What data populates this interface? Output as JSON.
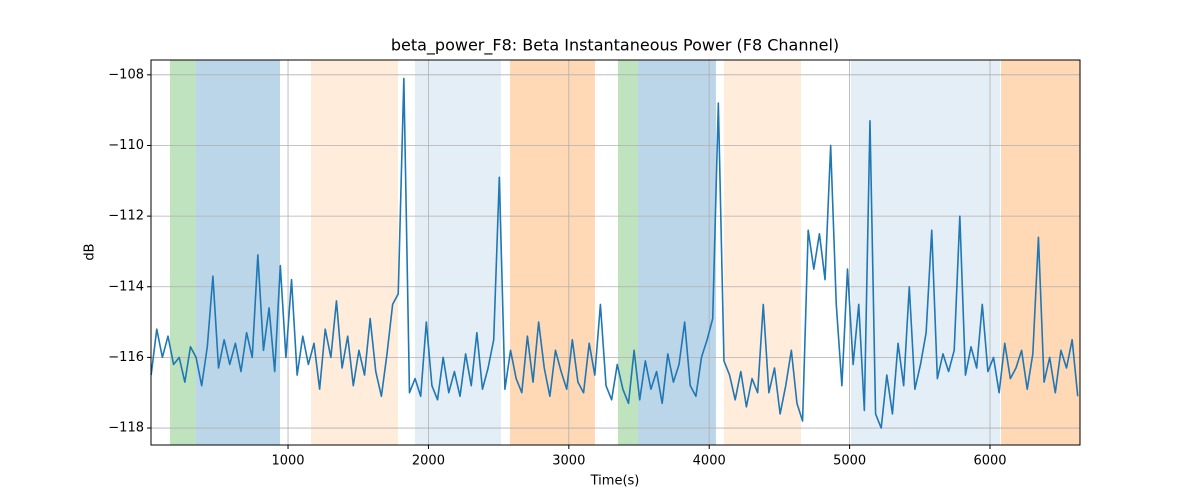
{
  "chart_data": {
    "type": "line",
    "title": "beta_power_F8: Beta Instantaneous Power (F8 Channel)",
    "x_label": "Time(s)",
    "y_label": "dB",
    "xlim": [
      24,
      6641
    ],
    "ylim": [
      -118.48,
      -107.58
    ],
    "xticks": [
      1000,
      2000,
      3000,
      4000,
      5000,
      6000
    ],
    "yticks": [
      {
        "value": -108,
        "label": "−108"
      },
      {
        "value": -110,
        "label": "−110"
      },
      {
        "value": -112,
        "label": "−112"
      },
      {
        "value": -114,
        "label": "−114"
      },
      {
        "value": -116,
        "label": "−116"
      },
      {
        "value": -118,
        "label": "−118"
      }
    ],
    "grid": true,
    "color": "#1f77b4",
    "spans": [
      {
        "x0": 159,
        "x1": 344,
        "color": "#2ca02c",
        "opacity": 0.3
      },
      {
        "x0": 344,
        "x1": 943,
        "color": "#1f77b4",
        "opacity": 0.3
      },
      {
        "x0": 1164,
        "x1": 1783,
        "color": "#ff7f0e",
        "opacity": 0.15
      },
      {
        "x0": 1904,
        "x1": 2517,
        "color": "#1f77b4",
        "opacity": 0.12
      },
      {
        "x0": 2581,
        "x1": 3186,
        "color": "#ff7f0e",
        "opacity": 0.3
      },
      {
        "x0": 3350,
        "x1": 3493,
        "color": "#2ca02c",
        "opacity": 0.3
      },
      {
        "x0": 3493,
        "x1": 4048,
        "color": "#1f77b4",
        "opacity": 0.3
      },
      {
        "x0": 4105,
        "x1": 4654,
        "color": "#ff7f0e",
        "opacity": 0.15
      },
      {
        "x0": 5010,
        "x1": 6071,
        "color": "#1f77b4",
        "opacity": 0.12
      },
      {
        "x0": 6078,
        "x1": 6641,
        "color": "#ff7f0e",
        "opacity": 0.3
      }
    ],
    "x": [
      25,
      65,
      105,
      145,
      185,
      225,
      265,
      305,
      345,
      385,
      425,
      465,
      505,
      545,
      585,
      625,
      665,
      705,
      745,
      785,
      825,
      865,
      905,
      945,
      985,
      1025,
      1065,
      1105,
      1145,
      1185,
      1225,
      1265,
      1305,
      1345,
      1385,
      1425,
      1465,
      1505,
      1545,
      1585,
      1625,
      1665,
      1705,
      1745,
      1785,
      1825,
      1865,
      1905,
      1945,
      1985,
      2025,
      2065,
      2105,
      2145,
      2185,
      2225,
      2265,
      2305,
      2345,
      2385,
      2425,
      2465,
      2505,
      2545,
      2585,
      2625,
      2665,
      2705,
      2745,
      2785,
      2825,
      2865,
      2905,
      2945,
      2985,
      3025,
      3065,
      3105,
      3145,
      3185,
      3225,
      3265,
      3305,
      3345,
      3385,
      3425,
      3465,
      3505,
      3545,
      3585,
      3625,
      3665,
      3705,
      3745,
      3785,
      3825,
      3865,
      3905,
      3945,
      3985,
      4025,
      4065,
      4105,
      4145,
      4185,
      4225,
      4265,
      4305,
      4345,
      4385,
      4425,
      4465,
      4505,
      4545,
      4585,
      4625,
      4665,
      4705,
      4745,
      4785,
      4825,
      4865,
      4905,
      4945,
      4985,
      5025,
      5065,
      5105,
      5145,
      5185,
      5225,
      5265,
      5305,
      5345,
      5385,
      5425,
      5465,
      5505,
      5545,
      5585,
      5625,
      5665,
      5705,
      5745,
      5785,
      5825,
      5865,
      5905,
      5945,
      5985,
      6025,
      6065,
      6105,
      6145,
      6185,
      6225,
      6265,
      6305,
      6345,
      6385,
      6425,
      6465,
      6505,
      6545,
      6585,
      6625
    ],
    "values": [
      -116.5,
      -115.2,
      -116.0,
      -115.4,
      -116.2,
      -116.0,
      -116.7,
      -115.7,
      -116.0,
      -116.8,
      -115.7,
      -113.7,
      -116.3,
      -115.5,
      -116.2,
      -115.6,
      -116.4,
      -115.3,
      -116.0,
      -113.1,
      -115.8,
      -114.6,
      -116.4,
      -113.4,
      -116.0,
      -113.8,
      -116.5,
      -115.4,
      -116.2,
      -115.6,
      -116.9,
      -115.2,
      -116.0,
      -114.4,
      -116.3,
      -115.4,
      -116.8,
      -115.8,
      -116.5,
      -114.9,
      -116.4,
      -117.1,
      -115.9,
      -114.5,
      -114.2,
      -108.1,
      -117.0,
      -116.6,
      -117.1,
      -115.0,
      -116.8,
      -117.2,
      -116.0,
      -117.0,
      -116.4,
      -117.1,
      -115.9,
      -116.8,
      -115.3,
      -116.9,
      -116.3,
      -115.5,
      -110.9,
      -116.9,
      -115.8,
      -116.6,
      -117.0,
      -115.4,
      -116.7,
      -115.0,
      -116.3,
      -117.1,
      -115.8,
      -116.4,
      -116.9,
      -115.5,
      -116.7,
      -117.0,
      -115.6,
      -116.5,
      -114.5,
      -116.8,
      -117.2,
      -116.2,
      -116.9,
      -117.3,
      -115.8,
      -117.2,
      -116.1,
      -116.9,
      -116.4,
      -117.3,
      -115.9,
      -116.7,
      -116.2,
      -115.0,
      -116.8,
      -117.1,
      -116.0,
      -115.5,
      -114.9,
      -108.8,
      -116.1,
      -116.5,
      -117.2,
      -116.4,
      -117.4,
      -116.6,
      -117.0,
      -114.5,
      -117.0,
      -116.3,
      -117.6,
      -116.8,
      -115.8,
      -117.3,
      -117.8,
      -112.4,
      -113.5,
      -112.5,
      -113.8,
      -110.0,
      -114.5,
      -116.8,
      -113.5,
      -116.2,
      -114.5,
      -117.5,
      -109.3,
      -117.6,
      -118.0,
      -116.5,
      -117.6,
      -115.6,
      -116.8,
      -114.0,
      -116.9,
      -116.2,
      -115.3,
      -112.4,
      -116.6,
      -115.9,
      -116.4,
      -115.8,
      -112.0,
      -116.5,
      -115.7,
      -116.3,
      -114.5,
      -116.4,
      -116.0,
      -117.0,
      -115.6,
      -116.6,
      -116.3,
      -115.8,
      -116.9,
      -115.9,
      -112.6,
      -116.7,
      -116.0,
      -117.0,
      -115.8,
      -116.3,
      -115.5,
      -117.1
    ]
  }
}
